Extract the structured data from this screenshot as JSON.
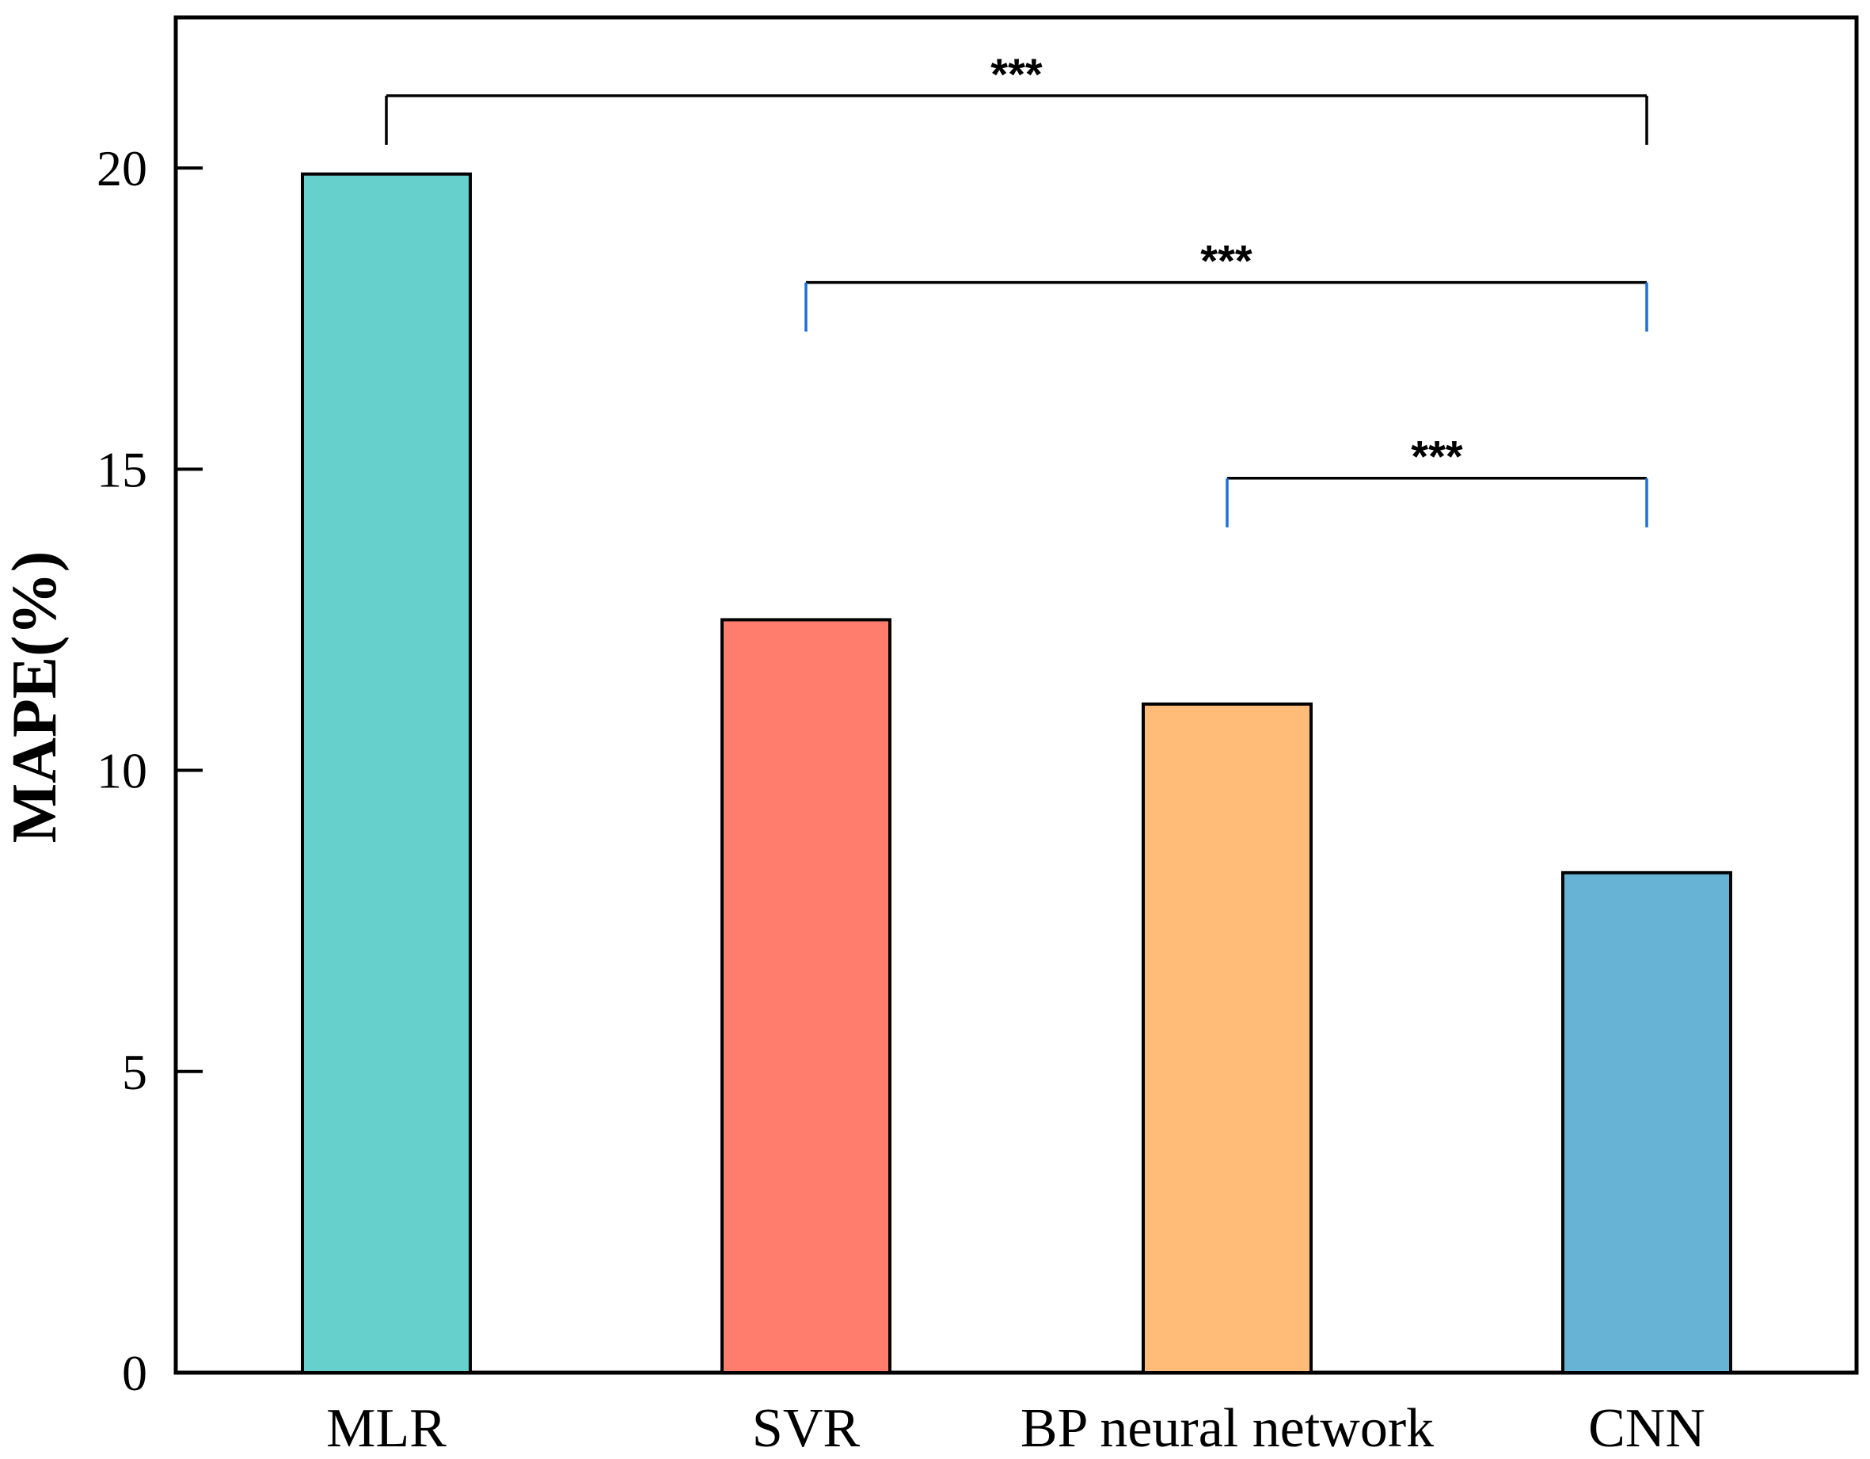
{
  "chart_data": {
    "type": "bar",
    "title": "",
    "xlabel": "",
    "ylabel": "MAPE(%)",
    "categories": [
      "MLR",
      "SVR",
      "BP neural network",
      "CNN"
    ],
    "values": [
      19.9,
      12.5,
      11.1,
      8.3
    ],
    "colors": [
      "#66d0cd",
      "#ff7d6c",
      "#ffbc78",
      "#66b3d5"
    ],
    "bar_edge_color": "#000000",
    "ylim": [
      0,
      22.5
    ],
    "yticks": [
      0,
      5,
      10,
      15,
      20
    ],
    "grid": false,
    "significance": [
      {
        "from": "MLR",
        "to": "CNN",
        "label": "***",
        "level": 21.2,
        "leg_color": "#000000"
      },
      {
        "from": "SVR",
        "to": "CNN",
        "label": "***",
        "level": 18.1,
        "leg_color": "#1f6fd6"
      },
      {
        "from": "BP neural network",
        "to": "CNN",
        "label": "***",
        "level": 14.85,
        "leg_color": "#1f6fd6"
      }
    ]
  }
}
